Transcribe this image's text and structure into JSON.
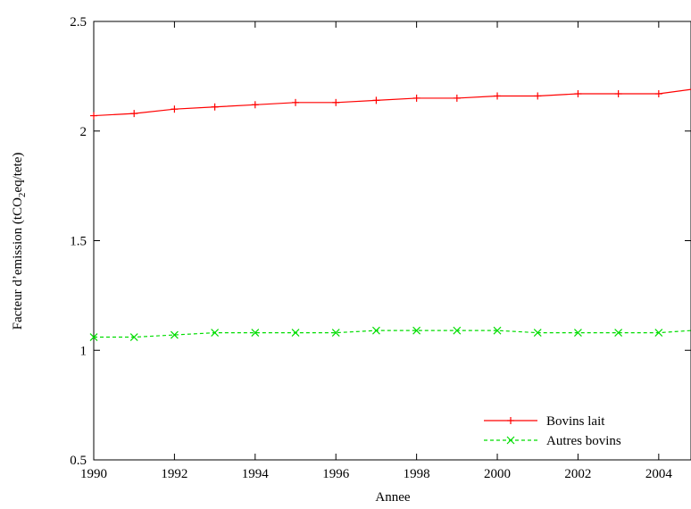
{
  "chart_data": {
    "type": "line",
    "title": "",
    "xlabel": "Annee",
    "ylabel_main": "Facteur d’emission (tCO",
    "ylabel_sub": "2",
    "ylabel_tail": "eq/tete)",
    "ylim": [
      0.5,
      2.5
    ],
    "xlim": [
      1990,
      2004.8
    ],
    "xticks": [
      1990,
      1992,
      1994,
      1996,
      1998,
      2000,
      2002,
      2004
    ],
    "yticks": [
      0.5,
      1,
      1.5,
      2,
      2.5
    ],
    "ytick_labels": [
      "0.5",
      "1",
      "1.5",
      "2",
      "2.5"
    ],
    "x": [
      1990,
      1991,
      1992,
      1993,
      1994,
      1995,
      1996,
      1997,
      1998,
      1999,
      2000,
      2001,
      2002,
      2003,
      2004,
      2004.8
    ],
    "series": [
      {
        "name": "Bovins lait",
        "color": "#ff0000",
        "marker": "plus",
        "dashed": false,
        "values": [
          2.07,
          2.08,
          2.1,
          2.11,
          2.12,
          2.13,
          2.13,
          2.14,
          2.15,
          2.15,
          2.16,
          2.16,
          2.17,
          2.17,
          2.17,
          2.19
        ]
      },
      {
        "name": "Autres bovins",
        "color": "#00dd00",
        "marker": "x",
        "dashed": true,
        "values": [
          1.06,
          1.06,
          1.07,
          1.08,
          1.08,
          1.08,
          1.08,
          1.09,
          1.09,
          1.09,
          1.09,
          1.08,
          1.08,
          1.08,
          1.08,
          1.09
        ]
      }
    ],
    "legend_position": "bottom-right",
    "grid": false
  }
}
